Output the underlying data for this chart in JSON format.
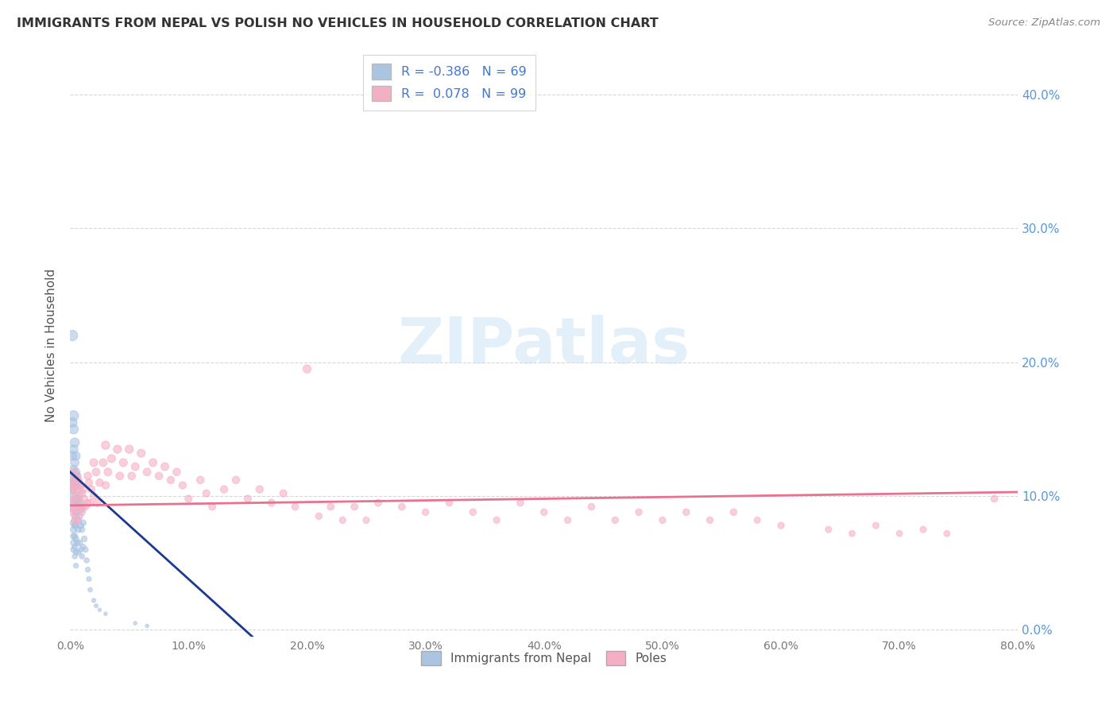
{
  "title": "IMMIGRANTS FROM NEPAL VS POLISH NO VEHICLES IN HOUSEHOLD CORRELATION CHART",
  "source": "Source: ZipAtlas.com",
  "ylabel": "No Vehicles in Household",
  "xlim": [
    0.0,
    0.8
  ],
  "ylim": [
    -0.005,
    0.43
  ],
  "nepal_color": "#aac4e2",
  "poles_color": "#f5afc4",
  "nepal_line_color": "#1a3a8f",
  "poles_line_color": "#e8728f",
  "legend_R_nepal": "-0.386",
  "legend_N_nepal": "69",
  "legend_R_poles": "0.078",
  "legend_N_poles": "99",
  "watermark": "ZIPatlas",
  "background_color": "#ffffff",
  "grid_color": "#cccccc",
  "nepal_scatter_x": [
    0.001,
    0.001,
    0.001,
    0.002,
    0.002,
    0.002,
    0.002,
    0.003,
    0.003,
    0.003,
    0.003,
    0.003,
    0.003,
    0.003,
    0.003,
    0.003,
    0.003,
    0.003,
    0.003,
    0.004,
    0.004,
    0.004,
    0.004,
    0.004,
    0.004,
    0.004,
    0.004,
    0.004,
    0.004,
    0.005,
    0.005,
    0.005,
    0.005,
    0.005,
    0.005,
    0.005,
    0.005,
    0.005,
    0.006,
    0.006,
    0.006,
    0.006,
    0.007,
    0.007,
    0.007,
    0.007,
    0.008,
    0.008,
    0.008,
    0.009,
    0.009,
    0.009,
    0.01,
    0.01,
    0.01,
    0.011,
    0.011,
    0.012,
    0.013,
    0.014,
    0.015,
    0.016,
    0.017,
    0.02,
    0.022,
    0.025,
    0.03,
    0.055,
    0.065
  ],
  "nepal_scatter_y": [
    0.115,
    0.105,
    0.095,
    0.22,
    0.155,
    0.13,
    0.11,
    0.16,
    0.15,
    0.135,
    0.12,
    0.11,
    0.1,
    0.09,
    0.08,
    0.075,
    0.07,
    0.065,
    0.06,
    0.14,
    0.125,
    0.115,
    0.105,
    0.095,
    0.085,
    0.078,
    0.07,
    0.062,
    0.055,
    0.13,
    0.118,
    0.108,
    0.098,
    0.088,
    0.078,
    0.068,
    0.058,
    0.048,
    0.115,
    0.098,
    0.082,
    0.065,
    0.11,
    0.095,
    0.075,
    0.058,
    0.1,
    0.085,
    0.065,
    0.095,
    0.078,
    0.06,
    0.09,
    0.075,
    0.055,
    0.08,
    0.062,
    0.068,
    0.06,
    0.052,
    0.045,
    0.038,
    0.03,
    0.022,
    0.018,
    0.015,
    0.012,
    0.005,
    0.003
  ],
  "nepal_scatter_size": [
    80,
    70,
    60,
    90,
    75,
    65,
    55,
    85,
    75,
    65,
    55,
    50,
    45,
    42,
    38,
    35,
    32,
    30,
    28,
    70,
    60,
    52,
    45,
    40,
    36,
    32,
    28,
    25,
    22,
    60,
    52,
    45,
    40,
    35,
    30,
    28,
    24,
    20,
    50,
    42,
    35,
    28,
    45,
    38,
    30,
    24,
    42,
    35,
    28,
    38,
    30,
    24,
    35,
    28,
    22,
    30,
    24,
    28,
    25,
    22,
    20,
    18,
    16,
    14,
    12,
    10,
    10,
    10,
    10
  ],
  "poles_scatter_x": [
    0.001,
    0.001,
    0.002,
    0.002,
    0.003,
    0.003,
    0.003,
    0.004,
    0.004,
    0.004,
    0.005,
    0.005,
    0.005,
    0.006,
    0.006,
    0.007,
    0.007,
    0.007,
    0.008,
    0.008,
    0.009,
    0.009,
    0.01,
    0.01,
    0.011,
    0.011,
    0.012,
    0.013,
    0.015,
    0.015,
    0.016,
    0.017,
    0.018,
    0.02,
    0.02,
    0.022,
    0.023,
    0.025,
    0.028,
    0.03,
    0.03,
    0.032,
    0.035,
    0.04,
    0.042,
    0.045,
    0.05,
    0.052,
    0.055,
    0.06,
    0.065,
    0.07,
    0.075,
    0.08,
    0.085,
    0.09,
    0.095,
    0.1,
    0.11,
    0.115,
    0.12,
    0.13,
    0.14,
    0.15,
    0.16,
    0.17,
    0.18,
    0.19,
    0.2,
    0.21,
    0.22,
    0.23,
    0.24,
    0.25,
    0.26,
    0.28,
    0.3,
    0.32,
    0.34,
    0.36,
    0.38,
    0.4,
    0.42,
    0.44,
    0.46,
    0.48,
    0.5,
    0.52,
    0.54,
    0.56,
    0.58,
    0.6,
    0.64,
    0.66,
    0.68,
    0.7,
    0.72,
    0.74,
    0.78
  ],
  "poles_scatter_y": [
    0.11,
    0.095,
    0.105,
    0.088,
    0.118,
    0.105,
    0.09,
    0.112,
    0.098,
    0.082,
    0.115,
    0.1,
    0.085,
    0.108,
    0.092,
    0.112,
    0.098,
    0.082,
    0.105,
    0.09,
    0.108,
    0.092,
    0.102,
    0.088,
    0.105,
    0.092,
    0.098,
    0.092,
    0.115,
    0.095,
    0.11,
    0.095,
    0.105,
    0.125,
    0.1,
    0.118,
    0.095,
    0.11,
    0.125,
    0.138,
    0.108,
    0.118,
    0.128,
    0.135,
    0.115,
    0.125,
    0.135,
    0.115,
    0.122,
    0.132,
    0.118,
    0.125,
    0.115,
    0.122,
    0.112,
    0.118,
    0.108,
    0.098,
    0.112,
    0.102,
    0.092,
    0.105,
    0.112,
    0.098,
    0.105,
    0.095,
    0.102,
    0.092,
    0.195,
    0.085,
    0.092,
    0.082,
    0.092,
    0.082,
    0.095,
    0.092,
    0.088,
    0.095,
    0.088,
    0.082,
    0.095,
    0.088,
    0.082,
    0.092,
    0.082,
    0.088,
    0.082,
    0.088,
    0.082,
    0.088,
    0.082,
    0.078,
    0.075,
    0.072,
    0.078,
    0.072,
    0.075,
    0.072,
    0.098
  ],
  "poles_scatter_size": [
    45,
    40,
    45,
    40,
    48,
    42,
    38,
    48,
    42,
    38,
    50,
    44,
    38,
    48,
    42,
    48,
    42,
    36,
    45,
    40,
    45,
    40,
    45,
    40,
    45,
    40,
    42,
    40,
    48,
    42,
    45,
    40,
    45,
    50,
    44,
    48,
    42,
    46,
    50,
    55,
    46,
    50,
    52,
    55,
    48,
    52,
    55,
    48,
    50,
    52,
    48,
    50,
    46,
    50,
    44,
    46,
    44,
    42,
    46,
    42,
    40,
    44,
    46,
    42,
    44,
    40,
    42,
    38,
    55,
    36,
    38,
    34,
    38,
    34,
    40,
    38,
    36,
    38,
    36,
    34,
    38,
    36,
    34,
    36,
    34,
    36,
    34,
    36,
    34,
    36,
    32,
    34,
    32,
    30,
    32,
    30,
    32,
    30,
    38
  ],
  "nepal_line_x": [
    0.0,
    0.16
  ],
  "nepal_line_y": [
    0.118,
    -0.01
  ],
  "poles_line_x": [
    0.0,
    0.8
  ],
  "poles_line_y": [
    0.093,
    0.103
  ],
  "right_yticks": [
    0.0,
    0.1,
    0.2,
    0.3,
    0.4
  ],
  "right_ytick_labels": [
    "0.0%",
    "10.0%",
    "20.0%",
    "30.0%",
    "40.0%"
  ],
  "xticks": [
    0.0,
    0.1,
    0.2,
    0.3,
    0.4,
    0.5,
    0.6,
    0.7,
    0.8
  ],
  "xtick_labels": [
    "0.0%",
    "10.0%",
    "20.0%",
    "30.0%",
    "40.0%",
    "50.0%",
    "60.0%",
    "70.0%",
    "80.0%"
  ],
  "grid_yticks": [
    0.0,
    0.1,
    0.2,
    0.3,
    0.4
  ]
}
